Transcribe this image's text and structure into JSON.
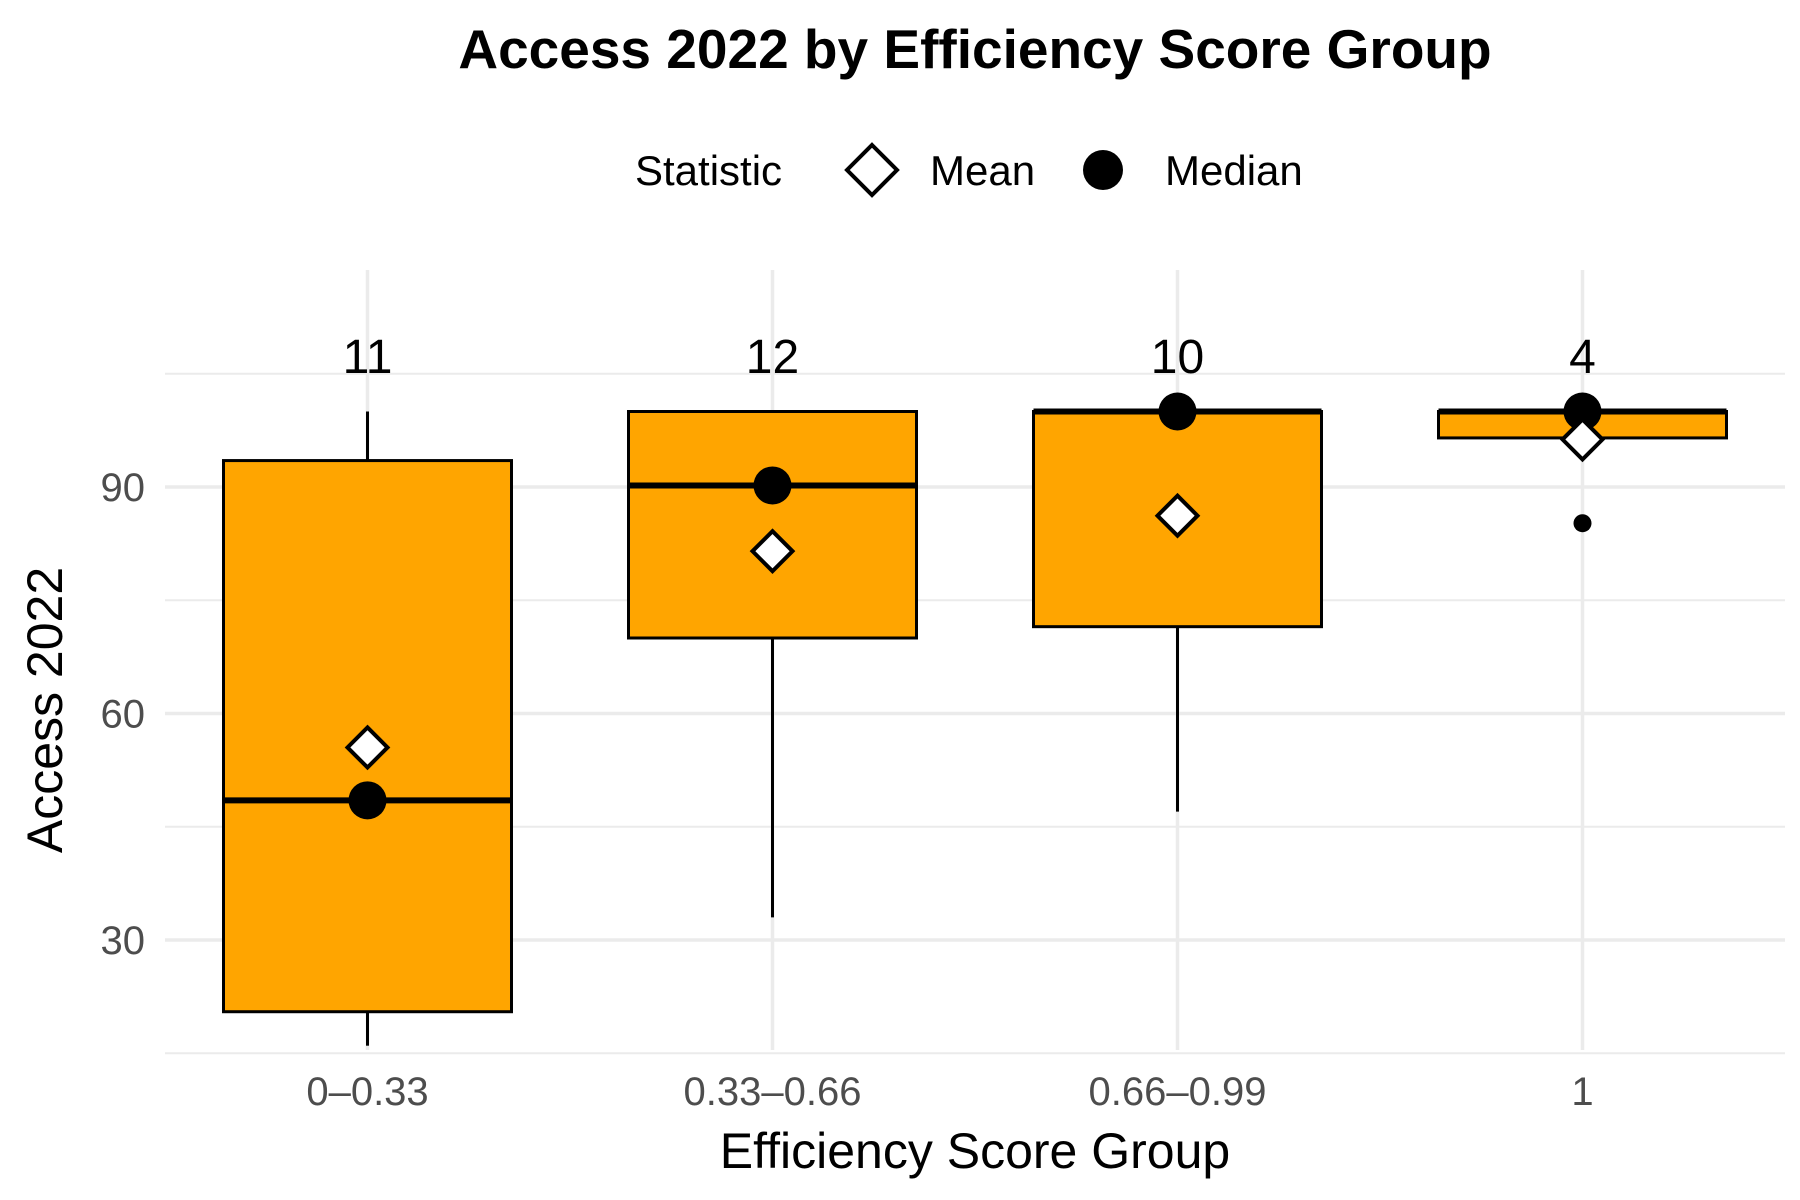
{
  "chart_data": {
    "type": "boxplot",
    "title": "Access 2022 by Efficiency Score Group",
    "xlabel": "Efficiency Score Group",
    "ylabel": "Access 2022",
    "categories": [
      "0–0.33",
      "0.33–0.66",
      "0.66–0.99",
      "1"
    ],
    "ylim": [
      15,
      113
    ],
    "yticks": [
      30,
      60,
      90
    ],
    "grid": true,
    "fill_color": "#FFA500",
    "legend": {
      "title": "Statistic",
      "position": "top",
      "entries": [
        {
          "label": "Mean",
          "shape": "diamond-open"
        },
        {
          "label": "Median",
          "shape": "circle-filled"
        }
      ]
    },
    "boxes": [
      {
        "group": "0–0.33",
        "n": "11",
        "whisker_low": 16,
        "q1": 20.5,
        "median": 48.5,
        "q3": 93.5,
        "whisker_high": 100,
        "mean": 55.5,
        "outliers": []
      },
      {
        "group": "0.33–0.66",
        "n": "12",
        "whisker_low": 33,
        "q1": 70,
        "median": 90.2,
        "q3": 100,
        "whisker_high": 100,
        "mean": 81.5,
        "outliers": []
      },
      {
        "group": "0.66–0.99",
        "n": "10",
        "whisker_low": 47,
        "q1": 71.5,
        "median": 100,
        "q3": 100,
        "whisker_high": 100,
        "mean": 86.2,
        "outliers": []
      },
      {
        "group": "1",
        "n": "4",
        "whisker_low": 96.5,
        "q1": 96.5,
        "median": 100,
        "q3": 100,
        "whisker_high": 100,
        "mean": 96.3,
        "outliers": [
          85.2
        ]
      }
    ]
  }
}
